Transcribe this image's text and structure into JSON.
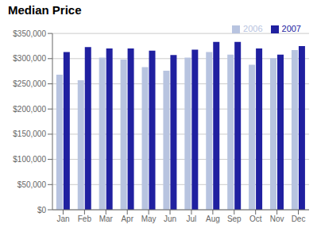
{
  "chart_data": {
    "type": "bar",
    "title": "Median Price",
    "categories": [
      "Jan",
      "Feb",
      "Mar",
      "Apr",
      "May",
      "Jun",
      "Jul",
      "Aug",
      "Sep",
      "Oct",
      "Nov",
      "Dec"
    ],
    "series": [
      {
        "name": "2006",
        "color": "#b8c4e0",
        "values": [
          268000,
          257000,
          302000,
          298000,
          283000,
          276000,
          302000,
          313000,
          308000,
          288000,
          301000,
          317000
        ]
      },
      {
        "name": "2007",
        "color": "#2020a0",
        "values": [
          313000,
          323000,
          320000,
          320000,
          316000,
          307000,
          318000,
          333000,
          333000,
          320000,
          308000,
          325000
        ]
      }
    ],
    "ylim": [
      0,
      350000
    ],
    "yticks": [
      {
        "value": 0,
        "label": "$0"
      },
      {
        "value": 50000,
        "label": "$50,000"
      },
      {
        "value": 100000,
        "label": "$100,000"
      },
      {
        "value": 150000,
        "label": "$150,000"
      },
      {
        "value": 200000,
        "label": "$200,000"
      },
      {
        "value": 250000,
        "label": "$250,000"
      },
      {
        "value": 300000,
        "label": "$300,000"
      },
      {
        "value": 350000,
        "label": "$350,000"
      }
    ],
    "grid": true,
    "legend": "upper right"
  }
}
